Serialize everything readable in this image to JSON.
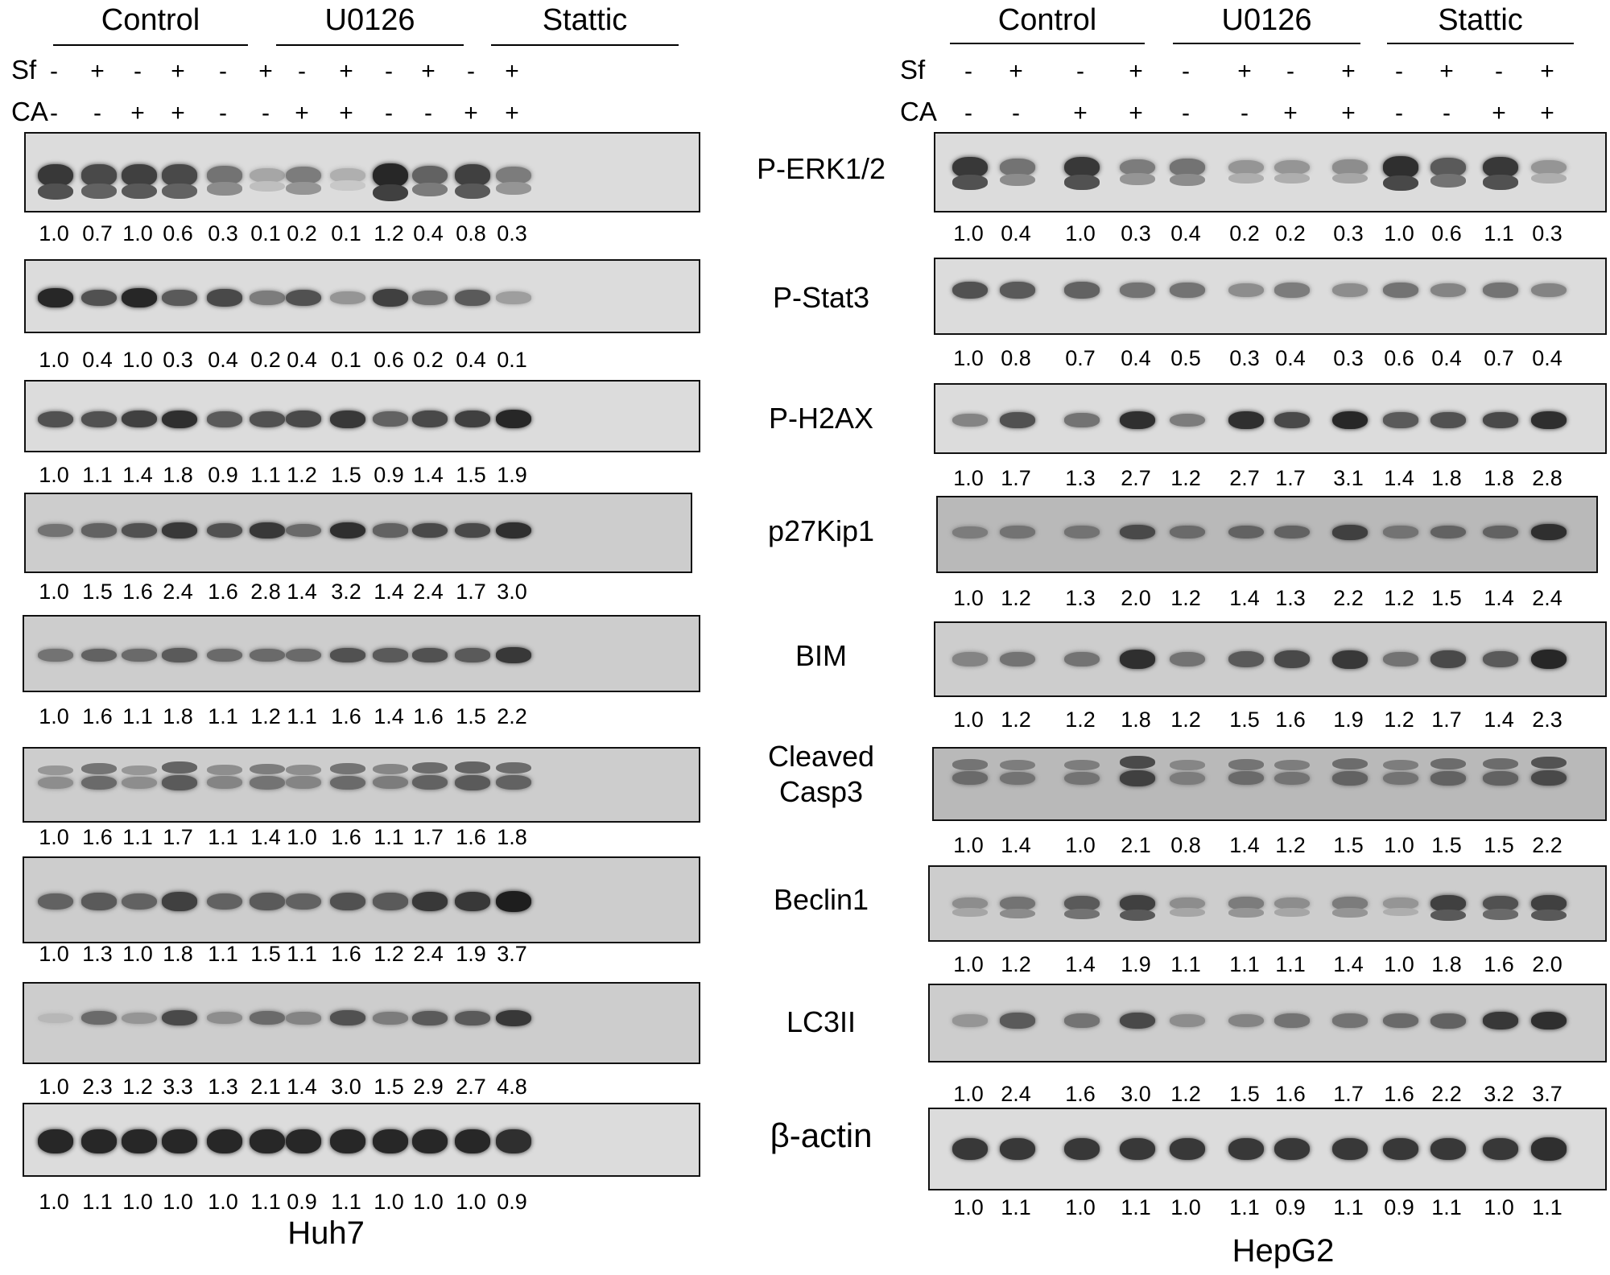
{
  "panels": [
    {
      "cell_line": "Huh7",
      "groups": [
        "Control",
        "U0126",
        "Stattic"
      ],
      "row_labels": [
        "Sf",
        "CA"
      ],
      "sf": [
        "-",
        "+",
        "-",
        "+",
        "-",
        "+",
        "-",
        "+",
        "-",
        "+",
        "-",
        "+"
      ],
      "ca": [
        "-",
        "-",
        "+",
        "+",
        "-",
        "-",
        "+",
        "+",
        "-",
        "-",
        "+",
        "+"
      ],
      "proteins": [
        {
          "name": "P-ERK1/2",
          "values": [
            "1.0",
            "0.7",
            "1.0",
            "0.6",
            "0.3",
            "0.1",
            "0.2",
            "0.1",
            "1.2",
            "0.4",
            "0.8",
            "0.3"
          ]
        },
        {
          "name": "P-Stat3",
          "values": [
            "1.0",
            "0.4",
            "1.0",
            "0.3",
            "0.4",
            "0.2",
            "0.4",
            "0.1",
            "0.6",
            "0.2",
            "0.4",
            "0.1"
          ]
        },
        {
          "name": "P-H2AX",
          "values": [
            "1.0",
            "1.1",
            "1.4",
            "1.8",
            "0.9",
            "1.1",
            "1.2",
            "1.5",
            "0.9",
            "1.4",
            "1.5",
            "1.9"
          ]
        },
        {
          "name": "p27Kip1",
          "values": [
            "1.0",
            "1.5",
            "1.6",
            "2.4",
            "1.6",
            "2.8",
            "1.4",
            "3.2",
            "1.4",
            "2.4",
            "1.7",
            "3.0"
          ]
        },
        {
          "name": "BIM",
          "values": [
            "1.0",
            "1.6",
            "1.1",
            "1.8",
            "1.1",
            "1.2",
            "1.1",
            "1.6",
            "1.4",
            "1.6",
            "1.5",
            "2.2"
          ]
        },
        {
          "name": "Cleaved\nCasp3",
          "values": [
            "1.0",
            "1.6",
            "1.1",
            "1.7",
            "1.1",
            "1.4",
            "1.0",
            "1.6",
            "1.1",
            "1.7",
            "1.6",
            "1.8"
          ]
        },
        {
          "name": "Beclin1",
          "values": [
            "1.0",
            "1.3",
            "1.0",
            "1.8",
            "1.1",
            "1.5",
            "1.1",
            "1.6",
            "1.2",
            "2.4",
            "1.9",
            "3.7"
          ]
        },
        {
          "name": "LC3II",
          "values": [
            "1.0",
            "2.3",
            "1.2",
            "3.3",
            "1.3",
            "2.1",
            "1.4",
            "3.0",
            "1.5",
            "2.9",
            "2.7",
            "4.8"
          ]
        },
        {
          "name": "β-actin",
          "values": [
            "1.0",
            "1.1",
            "1.0",
            "1.0",
            "1.0",
            "1.1",
            "0.9",
            "1.1",
            "1.0",
            "1.0",
            "1.0",
            "0.9"
          ]
        }
      ]
    },
    {
      "cell_line": "HepG2",
      "groups": [
        "Control",
        "U0126",
        "Stattic"
      ],
      "row_labels": [
        "Sf",
        "CA"
      ],
      "sf": [
        "-",
        "+",
        "-",
        "+",
        "-",
        "+",
        "-",
        "+",
        "-",
        "+",
        "-",
        "+"
      ],
      "ca": [
        "-",
        "-",
        "+",
        "+",
        "-",
        "-",
        "+",
        "+",
        "-",
        "-",
        "+",
        "+"
      ],
      "proteins": [
        {
          "name": "P-ERK1/2",
          "values": [
            "1.0",
            "0.4",
            "1.0",
            "0.3",
            "0.4",
            "0.2",
            "0.2",
            "0.3",
            "1.0",
            "0.6",
            "1.1",
            "0.3"
          ]
        },
        {
          "name": "P-Stat3",
          "values": [
            "1.0",
            "0.8",
            "0.7",
            "0.4",
            "0.5",
            "0.3",
            "0.4",
            "0.3",
            "0.6",
            "0.4",
            "0.7",
            "0.4"
          ]
        },
        {
          "name": "P-H2AX",
          "values": [
            "1.0",
            "1.7",
            "1.3",
            "2.7",
            "1.2",
            "2.7",
            "1.7",
            "3.1",
            "1.4",
            "1.8",
            "1.8",
            "2.8"
          ]
        },
        {
          "name": "p27Kip1",
          "values": [
            "1.0",
            "1.2",
            "1.3",
            "2.0",
            "1.2",
            "1.4",
            "1.3",
            "2.2",
            "1.2",
            "1.5",
            "1.4",
            "2.4"
          ]
        },
        {
          "name": "BIM",
          "values": [
            "1.0",
            "1.2",
            "1.2",
            "1.8",
            "1.2",
            "1.5",
            "1.6",
            "1.9",
            "1.2",
            "1.7",
            "1.4",
            "2.3"
          ]
        },
        {
          "name": "Cleaved\nCasp3",
          "values": [
            "1.0",
            "1.4",
            "1.0",
            "2.1",
            "0.8",
            "1.4",
            "1.2",
            "1.5",
            "1.0",
            "1.5",
            "1.5",
            "2.2"
          ]
        },
        {
          "name": "Beclin1",
          "values": [
            "1.0",
            "1.2",
            "1.4",
            "1.9",
            "1.1",
            "1.1",
            "1.1",
            "1.4",
            "1.0",
            "1.8",
            "1.6",
            "2.0"
          ]
        },
        {
          "name": "LC3II",
          "values": [
            "1.0",
            "2.4",
            "1.6",
            "3.0",
            "1.2",
            "1.5",
            "1.6",
            "1.7",
            "1.6",
            "2.2",
            "3.2",
            "3.7"
          ]
        },
        {
          "name": "β-actin",
          "values": [
            "1.0",
            "1.1",
            "1.0",
            "1.1",
            "1.0",
            "1.1",
            "0.9",
            "1.1",
            "0.9",
            "1.1",
            "1.0",
            "1.1"
          ]
        }
      ]
    }
  ]
}
